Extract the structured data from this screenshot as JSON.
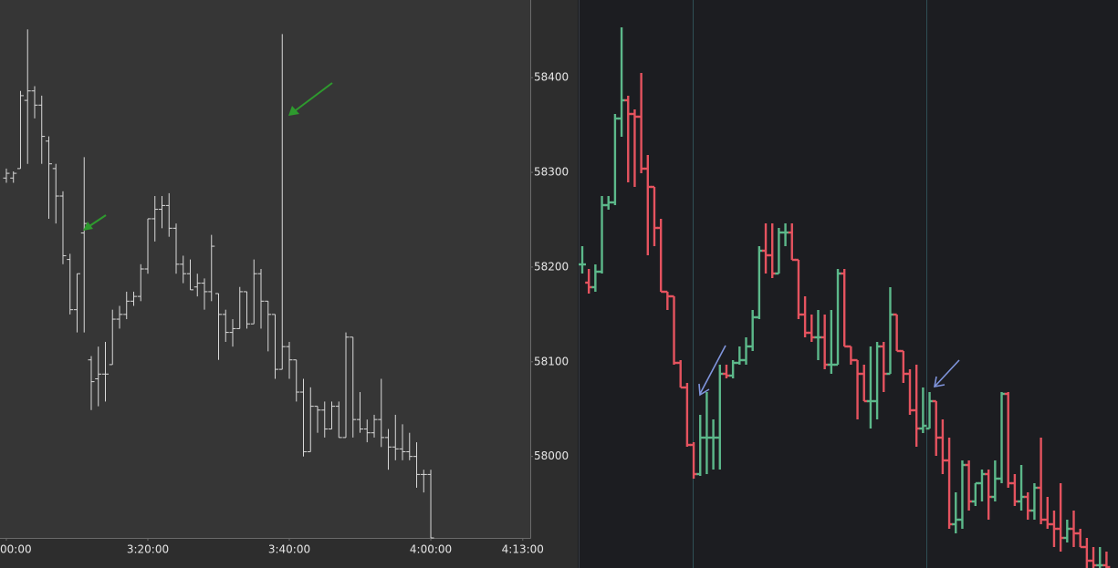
{
  "chart_data": [
    {
      "type": "ohlc",
      "color": "#d9d9d9",
      "x": [
        0,
        1,
        2,
        3,
        4,
        5,
        6,
        7,
        8,
        9,
        10,
        11,
        12,
        13,
        14,
        15,
        16,
        17,
        18,
        19,
        20,
        21,
        22,
        23,
        24,
        25,
        26,
        27,
        28,
        29,
        30,
        31,
        32,
        33,
        34,
        35,
        36,
        37,
        38,
        39,
        40,
        41,
        42,
        43,
        44,
        45,
        46,
        47,
        48,
        49,
        50,
        51,
        52,
        53,
        54,
        55,
        56,
        57,
        58,
        59,
        60
      ],
      "open": [
        58294,
        58294,
        58304,
        58376,
        58386,
        58371,
        58333,
        58304,
        58275,
        58208,
        58155,
        58236,
        58102,
        58082,
        58087,
        58097,
        58145,
        58150,
        58164,
        58169,
        58198,
        58251,
        58261,
        58265,
        58241,
        58203,
        58193,
        58179,
        58183,
        58174,
        58172,
        58150,
        58131,
        58135,
        58174,
        58140,
        58193,
        58164,
        58150,
        58092,
        58116,
        58102,
        58068,
        58005,
        58053,
        58049,
        58029,
        58053,
        58020,
        58126,
        58039,
        58029,
        58025,
        58039,
        58020,
        58010,
        58008,
        58005,
        58000,
        57981,
        57981
      ],
      "high": [
        58304,
        58301,
        58386,
        58451,
        58391,
        58381,
        58338,
        58309,
        58280,
        58214,
        58193,
        58316,
        58106,
        58116,
        58121,
        58155,
        58159,
        58174,
        58174,
        58203,
        58251,
        58275,
        58275,
        58278,
        58246,
        58212,
        58208,
        58193,
        58188,
        58234,
        58172,
        58155,
        58145,
        58179,
        58174,
        58208,
        58198,
        58164,
        58150,
        58446,
        58121,
        58102,
        58082,
        58073,
        58053,
        58058,
        58058,
        58058,
        58131,
        58126,
        58068,
        58039,
        58044,
        58082,
        58029,
        58044,
        58034,
        58025,
        58015,
        57986,
        57986
      ],
      "low": [
        58289,
        58289,
        58304,
        58309,
        58357,
        58309,
        58251,
        58246,
        58203,
        58150,
        58131,
        58131,
        58049,
        58053,
        58058,
        58097,
        58135,
        58145,
        58159,
        58164,
        58193,
        58227,
        58241,
        58232,
        58193,
        58183,
        58176,
        58169,
        58155,
        58164,
        58102,
        58121,
        58116,
        58135,
        58135,
        58140,
        58135,
        58111,
        58082,
        58092,
        58082,
        58058,
        58000,
        58005,
        58025,
        58020,
        58029,
        58020,
        58020,
        58020,
        58025,
        58015,
        58020,
        58010,
        57986,
        57996,
        57996,
        57996,
        57967,
        57962,
        57914
      ],
      "close": [
        58299,
        58299,
        58381,
        58386,
        58371,
        58338,
        58309,
        58275,
        58212,
        58155,
        58193,
        58246,
        58079,
        58087,
        58087,
        58145,
        58150,
        58164,
        58169,
        58198,
        58251,
        58261,
        58265,
        58241,
        58203,
        58193,
        58176,
        58183,
        58174,
        58222,
        58150,
        58131,
        58135,
        58174,
        58140,
        58193,
        58164,
        58150,
        58092,
        58116,
        58102,
        58068,
        58005,
        58053,
        58049,
        58029,
        58053,
        58020,
        58126,
        58039,
        58029,
        58025,
        58039,
        58020,
        58010,
        58008,
        58005,
        58000,
        57981,
        57981,
        57914
      ],
      "xlim": [
        -0.9,
        74.06
      ],
      "xticks": [
        {
          "value": 0,
          "label": "00:00"
        },
        {
          "value": 20,
          "label": "3:20:00"
        },
        {
          "value": 40,
          "label": "3:40:00"
        },
        {
          "value": 60,
          "label": "4:00:00"
        },
        {
          "value": 73,
          "label": "4:13:00"
        }
      ],
      "ylim": [
        57914,
        58482
      ],
      "yticks": [
        58000,
        58100,
        58200,
        58300,
        58400
      ]
    },
    {
      "type": "ohlc",
      "up_color": "#5cb88a",
      "down_color": "#e5535f",
      "open": [
        58193,
        58173,
        58168,
        58185,
        58258,
        58261,
        58353,
        58373,
        58358,
        58355,
        58298,
        58278,
        58233,
        58163,
        58158,
        58085,
        58058,
        57995,
        57963,
        58003,
        58003,
        58003,
        58073,
        58071,
        58085,
        58088,
        58103,
        58135,
        58208,
        58203,
        58183,
        58228,
        58228,
        58198,
        58138,
        58118,
        58113,
        58113,
        58083,
        58083,
        58183,
        58103,
        58088,
        58073,
        58043,
        58043,
        58103,
        58073,
        58138,
        58098,
        58073,
        58033,
        58013,
        58013,
        58043,
        58003,
        57978,
        57908,
        57913,
        57973,
        57933,
        57953,
        57963,
        57938,
        57958,
        58051,
        57953,
        57933,
        57938,
        57923,
        57948,
        57913,
        57908,
        57903,
        57893,
        57903,
        57898,
        57883,
        57868,
        57863,
        57863
      ],
      "high": [
        58213,
        58188,
        58193,
        58268,
        58268,
        58358,
        58453,
        58378,
        58363,
        58403,
        58313,
        58278,
        58243,
        58163,
        58158,
        58088,
        58063,
        57998,
        58028,
        58053,
        58023,
        58083,
        58083,
        58088,
        58103,
        58113,
        58143,
        58213,
        58238,
        58238,
        58233,
        58238,
        58238,
        58198,
        58158,
        58138,
        58143,
        58138,
        58143,
        58188,
        58188,
        58103,
        58088,
        58083,
        58103,
        58108,
        58108,
        58168,
        58138,
        58098,
        58078,
        58083,
        58058,
        58053,
        58043,
        58023,
        58003,
        57943,
        57978,
        57978,
        57953,
        57968,
        57968,
        57978,
        58053,
        58053,
        57963,
        57973,
        57943,
        57953,
        58003,
        57938,
        57923,
        57953,
        57913,
        57923,
        57903,
        57893,
        57883,
        57883,
        57878
      ],
      "low": [
        58183,
        58161,
        58163,
        58183,
        58253,
        58258,
        58333,
        58283,
        58278,
        58293,
        58203,
        58213,
        58163,
        58143,
        58083,
        58058,
        57993,
        57958,
        57961,
        57963,
        57968,
        57968,
        58068,
        58068,
        58083,
        58083,
        58098,
        58133,
        58183,
        58178,
        58183,
        58213,
        58198,
        58133,
        58113,
        58108,
        58088,
        58078,
        58073,
        58083,
        58103,
        58083,
        58023,
        58043,
        58013,
        58023,
        58053,
        58073,
        58098,
        58063,
        58028,
        57993,
        58008,
        58013,
        57983,
        57963,
        57903,
        57898,
        57903,
        57923,
        57928,
        57933,
        57913,
        57933,
        57953,
        57948,
        57928,
        57923,
        57913,
        57913,
        57908,
        57903,
        57883,
        57878,
        57888,
        57883,
        57883,
        57860,
        57860,
        57860,
        57860
      ],
      "close": [
        58193,
        58168,
        58185,
        58258,
        58261,
        58353,
        58373,
        58358,
        58355,
        58298,
        58278,
        58233,
        58163,
        58158,
        58085,
        58058,
        57995,
        57963,
        58003,
        58003,
        58003,
        58073,
        58071,
        58085,
        58088,
        58103,
        58135,
        58208,
        58203,
        58183,
        58228,
        58228,
        58198,
        58138,
        58118,
        58113,
        58113,
        58083,
        58083,
        58183,
        58103,
        58088,
        58073,
        58043,
        58043,
        58103,
        58073,
        58138,
        58098,
        58073,
        58033,
        58013,
        58016,
        58043,
        58003,
        57978,
        57908,
        57913,
        57973,
        57933,
        57953,
        57963,
        57938,
        57958,
        58051,
        57953,
        57933,
        57938,
        57923,
        57948,
        57913,
        57908,
        57903,
        57893,
        57903,
        57898,
        57883,
        57868,
        57863,
        57863,
        57861
      ],
      "ylim": [
        57860,
        58483
      ]
    }
  ]
}
